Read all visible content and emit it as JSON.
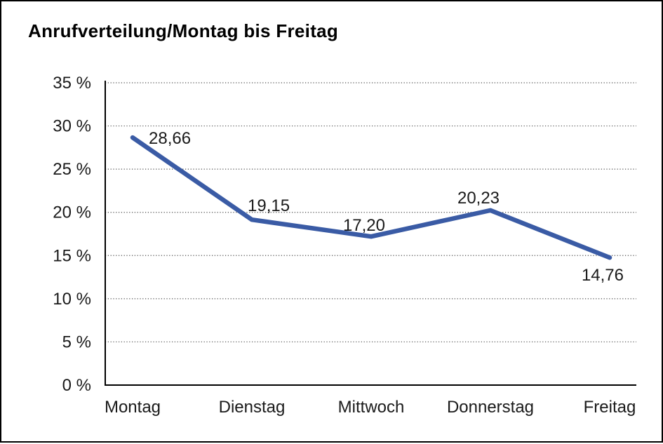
{
  "chart": {
    "title": "Anrufverteilung/Montag bis Freitag"
  },
  "chart_data": {
    "type": "line",
    "title": "Anrufverteilung/Montag bis Freitag",
    "categories": [
      "Montag",
      "Dienstag",
      "Mittwoch",
      "Donnerstag",
      "Freitag"
    ],
    "series": [
      {
        "name": "Anrufverteilung",
        "values": [
          28.66,
          19.15,
          17.2,
          20.23,
          14.76
        ]
      }
    ],
    "point_labels": [
      "28,66",
      "19,15",
      "17,20",
      "20,23",
      "14,76"
    ],
    "y_ticks": [
      "0 %",
      "5 %",
      "10 %",
      "15 %",
      "20 %",
      "25 %",
      "30 %",
      "35 %"
    ],
    "ylim": [
      0,
      35
    ],
    "ytick_step": 5,
    "xlabel": "",
    "ylabel": "",
    "grid": "horizontal-dotted",
    "legend": "none",
    "line_color": "#3A5BA5",
    "axis_color": "#000000",
    "grid_color": "#4d4d4d",
    "label_color": "#1a1a1a"
  }
}
